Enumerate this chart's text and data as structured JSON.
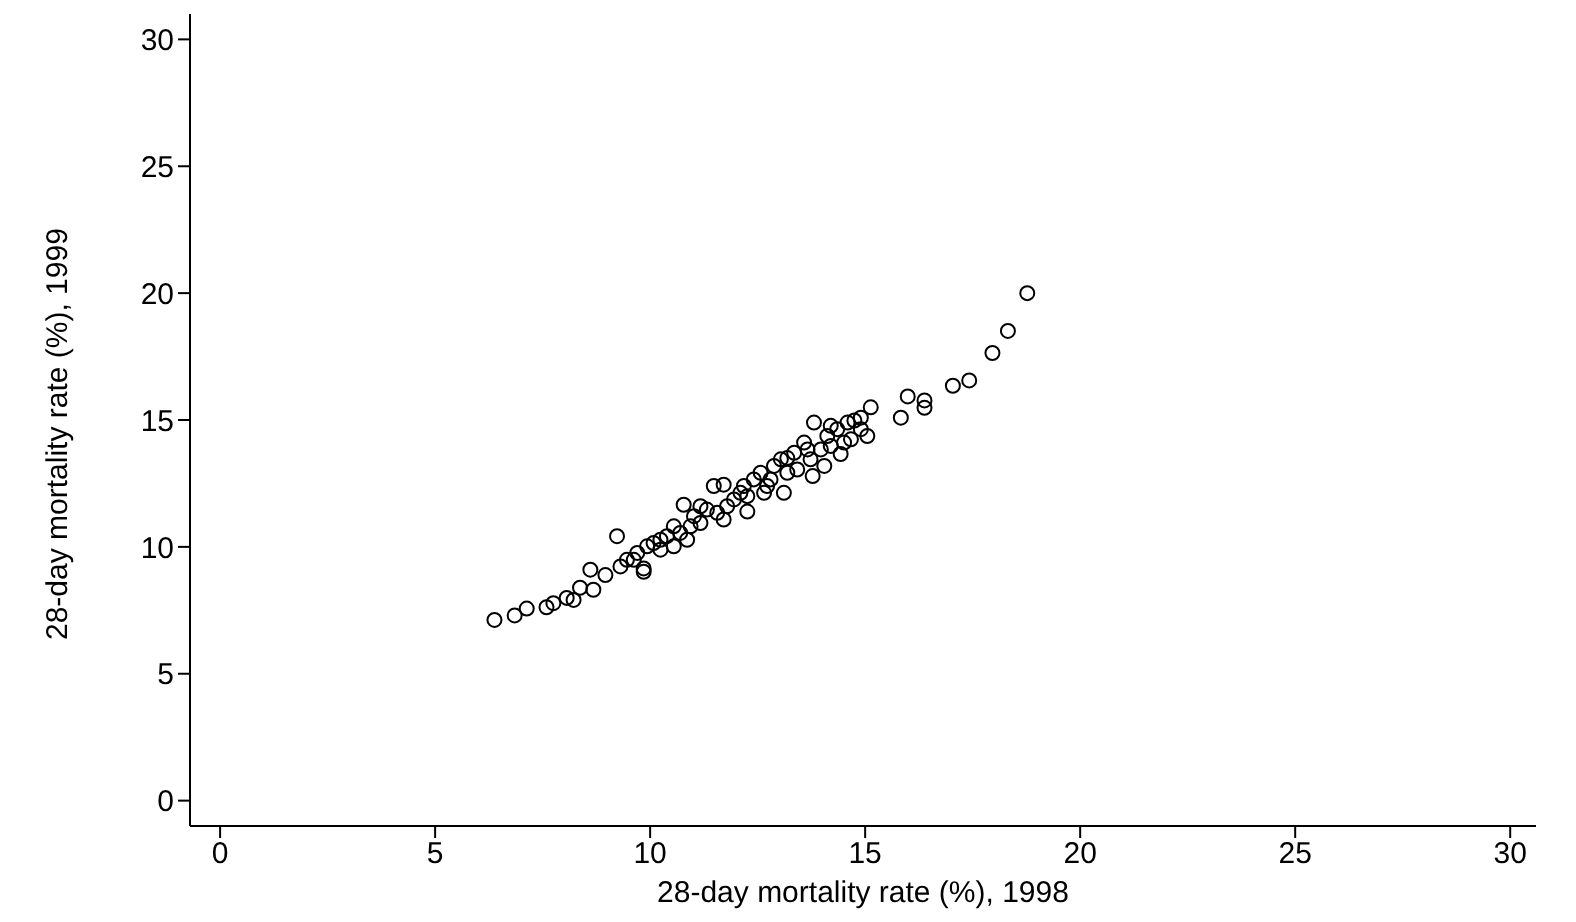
{
  "chart_data": {
    "type": "scatter",
    "xlabel": "28-day mortality rate (%), 1998",
    "ylabel": "28-day mortality rate (%), 1999",
    "xlim": [
      -0.7,
      30.6
    ],
    "ylim": [
      -1,
      31
    ],
    "xticks": [
      0,
      5,
      10,
      15,
      20,
      25,
      30
    ],
    "yticks": [
      0,
      5,
      10,
      15,
      20,
      25,
      30
    ],
    "grid": false,
    "legend": false,
    "marker": "circle",
    "series": [
      {
        "color": "#000000",
        "x": [
          6.38,
          6.85,
          7.13,
          7.59,
          7.75,
          8.06,
          8.22,
          8.37,
          8.68,
          8.61,
          8.96,
          9.23,
          9.31,
          9.85,
          9.62,
          9.46,
          9.7,
          9.93,
          10.08,
          10.24,
          10.39,
          10.55,
          10.7,
          10.78,
          10.94,
          11.02,
          11.17,
          11.32,
          11.48,
          11.56,
          11.71,
          11.79,
          11.95,
          12.1,
          12.18,
          12.26,
          12.41,
          12.57,
          12.65,
          12.8,
          12.88,
          13.04,
          13.11,
          13.19,
          13.35,
          13.42,
          13.58,
          13.66,
          13.78,
          13.97,
          14.05,
          14.12,
          14.2,
          14.35,
          14.43,
          14.59,
          14.75,
          14.9,
          15.05,
          14.51,
          10.24,
          9.85,
          10.55,
          10.86,
          11.17,
          11.71,
          12.26,
          12.72,
          13.19,
          13.73,
          14.2,
          14.67,
          14.9,
          13.81,
          15.13,
          15.99,
          16.38,
          15.83,
          16.38,
          17.04,
          17.42,
          17.96,
          18.32,
          18.77
        ],
        "values": [
          7.12,
          7.3,
          7.57,
          7.62,
          7.78,
          7.99,
          7.91,
          8.39,
          8.31,
          9.1,
          8.89,
          10.42,
          9.23,
          9.02,
          9.49,
          9.49,
          9.76,
          10.02,
          10.15,
          10.28,
          10.42,
          10.02,
          10.55,
          11.66,
          10.81,
          11.21,
          10.94,
          11.47,
          12.4,
          11.34,
          12.45,
          11.6,
          11.87,
          12.13,
          12.4,
          11.39,
          12.66,
          12.92,
          12.13,
          12.66,
          13.19,
          13.45,
          12.13,
          13.5,
          13.71,
          13.05,
          14.11,
          13.84,
          12.79,
          13.84,
          13.19,
          14.37,
          14.77,
          14.64,
          13.66,
          14.9,
          14.98,
          14.64,
          14.37,
          14.11,
          9.89,
          9.15,
          10.81,
          10.28,
          11.6,
          11.08,
          12.0,
          12.4,
          12.92,
          13.45,
          13.98,
          14.24,
          15.09,
          14.9,
          15.5,
          15.93,
          15.77,
          15.09,
          15.48,
          16.35,
          16.56,
          17.64,
          18.51,
          20.0
        ]
      }
    ]
  }
}
